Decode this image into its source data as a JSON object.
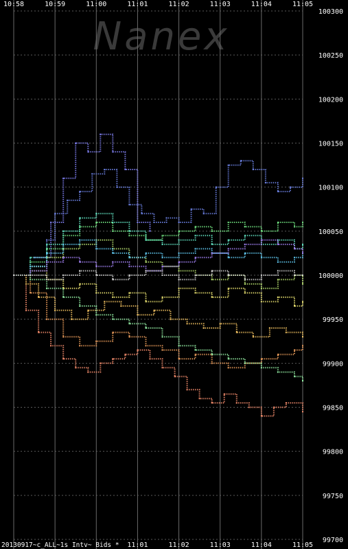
{
  "chart_data": {
    "type": "scatter",
    "watermark": "Nanex",
    "footer": "20130917~c_ALL~1s Intv~ Bids *",
    "x_ticks_top": [
      "10:58",
      "10:59",
      "11:00",
      "11:01",
      "11:02",
      "11:03",
      "11:04",
      "11:05"
    ],
    "x_ticks_bottom": [
      "11:01",
      "11:02",
      "11:03",
      "11:04",
      "11:05"
    ],
    "y_ticks": [
      100300,
      100250,
      100200,
      100150,
      100100,
      100050,
      100000,
      99950,
      99900,
      99850,
      99800,
      99750,
      99700
    ],
    "ylim": [
      99700,
      100300
    ],
    "xlim_minutes": [
      0,
      7
    ],
    "grid": true,
    "series": [
      {
        "color": "#6a7fe0",
        "values": [
          [
            0.0,
            100000
          ],
          [
            0.4,
            100010
          ],
          [
            0.8,
            100040
          ],
          [
            1.0,
            100070
          ],
          [
            1.3,
            100085
          ],
          [
            1.6,
            100095
          ],
          [
            1.9,
            100115
          ],
          [
            2.2,
            100120
          ],
          [
            2.5,
            100100
          ],
          [
            2.8,
            100080
          ],
          [
            3.1,
            100070
          ],
          [
            3.4,
            100060
          ],
          [
            3.7,
            100065
          ],
          [
            4.0,
            100060
          ],
          [
            4.3,
            100075
          ],
          [
            4.6,
            100070
          ],
          [
            4.9,
            100100
          ],
          [
            5.2,
            100125
          ],
          [
            5.5,
            100130
          ],
          [
            5.8,
            100120
          ],
          [
            6.1,
            100105
          ],
          [
            6.4,
            100095
          ],
          [
            6.7,
            100100
          ],
          [
            7.0,
            100110
          ]
        ]
      },
      {
        "color": "#7e7ef0",
        "values": [
          [
            0.5,
            100020
          ],
          [
            0.9,
            100060
          ],
          [
            1.2,
            100110
          ],
          [
            1.5,
            100150
          ],
          [
            1.8,
            100140
          ],
          [
            2.1,
            100160
          ],
          [
            2.4,
            100140
          ],
          [
            2.7,
            100120
          ],
          [
            3.0,
            100060
          ],
          [
            3.3,
            100050
          ]
        ]
      },
      {
        "color": "#f08a6a",
        "values": [
          [
            0.0,
            100000
          ],
          [
            0.3,
            99960
          ],
          [
            0.6,
            99935
          ],
          [
            0.9,
            99920
          ],
          [
            1.2,
            99905
          ],
          [
            1.5,
            99895
          ],
          [
            1.8,
            99890
          ],
          [
            2.1,
            99900
          ],
          [
            2.4,
            99905
          ],
          [
            2.7,
            99910
          ],
          [
            3.0,
            99915
          ],
          [
            3.3,
            99905
          ],
          [
            3.6,
            99895
          ],
          [
            3.9,
            99885
          ],
          [
            4.2,
            99870
          ],
          [
            4.5,
            99860
          ],
          [
            4.8,
            99855
          ],
          [
            5.1,
            99865
          ],
          [
            5.4,
            99855
          ],
          [
            5.7,
            99850
          ],
          [
            6.0,
            99840
          ],
          [
            6.3,
            99850
          ],
          [
            6.6,
            99855
          ],
          [
            7.0,
            99845
          ]
        ]
      },
      {
        "color": "#e89a5a",
        "values": [
          [
            0.0,
            100000
          ],
          [
            0.4,
            99980
          ],
          [
            0.8,
            99950
          ],
          [
            1.2,
            99930
          ],
          [
            1.6,
            99920
          ],
          [
            2.0,
            99925
          ],
          [
            2.4,
            99935
          ],
          [
            2.8,
            99930
          ],
          [
            3.2,
            99920
          ],
          [
            3.6,
            99915
          ],
          [
            4.0,
            99905
          ],
          [
            4.4,
            99910
          ],
          [
            4.8,
            99900
          ],
          [
            5.2,
            99895
          ],
          [
            5.6,
            99900
          ],
          [
            6.0,
            99905
          ],
          [
            6.4,
            99910
          ],
          [
            6.8,
            99915
          ],
          [
            7.0,
            99920
          ]
        ]
      },
      {
        "color": "#f0c060",
        "values": [
          [
            0.0,
            100000
          ],
          [
            0.3,
            99990
          ],
          [
            0.6,
            99975
          ],
          [
            1.0,
            99960
          ],
          [
            1.4,
            99950
          ],
          [
            1.8,
            99960
          ],
          [
            2.2,
            99970
          ],
          [
            2.6,
            99965
          ],
          [
            3.0,
            99955
          ],
          [
            3.4,
            99960
          ],
          [
            3.8,
            99950
          ],
          [
            4.2,
            99945
          ],
          [
            4.6,
            99940
          ],
          [
            5.0,
            99945
          ],
          [
            5.4,
            99935
          ],
          [
            5.8,
            99930
          ],
          [
            6.2,
            99940
          ],
          [
            6.6,
            99935
          ],
          [
            7.0,
            99930
          ]
        ]
      },
      {
        "color": "#e8e070",
        "values": [
          [
            0.0,
            100000
          ],
          [
            0.4,
            100005
          ],
          [
            0.8,
            99995
          ],
          [
            1.2,
            99985
          ],
          [
            1.6,
            99990
          ],
          [
            2.0,
            99980
          ],
          [
            2.4,
            99975
          ],
          [
            2.8,
            99980
          ],
          [
            3.2,
            99970
          ],
          [
            3.6,
            99975
          ],
          [
            4.0,
            99985
          ],
          [
            4.4,
            99980
          ],
          [
            4.8,
            99975
          ],
          [
            5.2,
            99985
          ],
          [
            5.6,
            99980
          ],
          [
            6.0,
            99970
          ],
          [
            6.4,
            99975
          ],
          [
            6.8,
            99965
          ],
          [
            7.0,
            99970
          ]
        ]
      },
      {
        "color": "#b8e070",
        "values": [
          [
            0.0,
            100000
          ],
          [
            0.4,
            100010
          ],
          [
            0.8,
            100020
          ],
          [
            1.2,
            100030
          ],
          [
            1.6,
            100035
          ],
          [
            2.0,
            100040
          ],
          [
            2.4,
            100030
          ],
          [
            2.8,
            100020
          ],
          [
            3.2,
            100015
          ],
          [
            3.6,
            100010
          ],
          [
            4.0,
            100005
          ],
          [
            4.4,
            100000
          ],
          [
            4.8,
            99995
          ],
          [
            5.2,
            100000
          ],
          [
            5.6,
            99990
          ],
          [
            6.0,
            99985
          ],
          [
            6.4,
            99995
          ],
          [
            6.8,
            100000
          ],
          [
            7.0,
            99990
          ]
        ]
      },
      {
        "color": "#70e080",
        "values": [
          [
            0.0,
            100000
          ],
          [
            0.4,
            100015
          ],
          [
            0.8,
            100030
          ],
          [
            1.2,
            100045
          ],
          [
            1.6,
            100055
          ],
          [
            2.0,
            100060
          ],
          [
            2.4,
            100050
          ],
          [
            2.8,
            100045
          ],
          [
            3.2,
            100040
          ],
          [
            3.6,
            100045
          ],
          [
            4.0,
            100050
          ],
          [
            4.4,
            100055
          ],
          [
            4.8,
            100050
          ],
          [
            5.2,
            100060
          ],
          [
            5.6,
            100055
          ],
          [
            6.0,
            100050
          ],
          [
            6.4,
            100060
          ],
          [
            6.8,
            100055
          ],
          [
            7.0,
            100060
          ]
        ]
      },
      {
        "color": "#60e0c0",
        "values": [
          [
            0.0,
            100000
          ],
          [
            0.4,
            100020
          ],
          [
            0.8,
            100035
          ],
          [
            1.2,
            100050
          ],
          [
            1.6,
            100065
          ],
          [
            2.0,
            100070
          ],
          [
            2.4,
            100060
          ],
          [
            2.8,
            100050
          ],
          [
            3.2,
            100040
          ],
          [
            3.6,
            100035
          ],
          [
            4.0,
            100040
          ],
          [
            4.4,
            100045
          ],
          [
            4.8,
            100035
          ],
          [
            5.2,
            100040
          ],
          [
            5.6,
            100045
          ],
          [
            6.0,
            100035
          ],
          [
            6.4,
            100040
          ],
          [
            6.8,
            100030
          ],
          [
            7.0,
            100035
          ]
        ]
      },
      {
        "color": "#60c8f0",
        "values": [
          [
            0.0,
            100000
          ],
          [
            0.4,
            100010
          ],
          [
            0.8,
            100025
          ],
          [
            1.2,
            100035
          ],
          [
            1.6,
            100040
          ],
          [
            2.0,
            100030
          ],
          [
            2.4,
            100025
          ],
          [
            2.8,
            100020
          ],
          [
            3.2,
            100025
          ],
          [
            3.6,
            100020
          ],
          [
            4.0,
            100025
          ],
          [
            4.4,
            100030
          ],
          [
            4.8,
            100025
          ],
          [
            5.2,
            100020
          ],
          [
            5.6,
            100025
          ],
          [
            6.0,
            100020
          ],
          [
            6.4,
            100015
          ],
          [
            6.8,
            100020
          ],
          [
            7.0,
            100025
          ]
        ]
      },
      {
        "color": "#a080f0",
        "values": [
          [
            0.0,
            100000
          ],
          [
            0.4,
            100005
          ],
          [
            0.8,
            100015
          ],
          [
            1.2,
            100020
          ],
          [
            1.6,
            100015
          ],
          [
            2.0,
            100010
          ],
          [
            2.4,
            100015
          ],
          [
            2.8,
            100010
          ],
          [
            3.2,
            100005
          ],
          [
            3.6,
            100010
          ],
          [
            4.0,
            100015
          ],
          [
            4.4,
            100020
          ],
          [
            4.8,
            100025
          ],
          [
            5.2,
            100030
          ],
          [
            5.6,
            100035
          ],
          [
            6.0,
            100040
          ],
          [
            6.4,
            100035
          ],
          [
            6.8,
            100030
          ],
          [
            7.0,
            100025
          ]
        ]
      },
      {
        "color": "#90e8a0",
        "values": [
          [
            0.0,
            100000
          ],
          [
            0.4,
            99995
          ],
          [
            0.8,
            99985
          ],
          [
            1.2,
            99975
          ],
          [
            1.6,
            99965
          ],
          [
            2.0,
            99955
          ],
          [
            2.4,
            99950
          ],
          [
            2.8,
            99945
          ],
          [
            3.2,
            99940
          ],
          [
            3.6,
            99930
          ],
          [
            4.0,
            99920
          ],
          [
            4.4,
            99915
          ],
          [
            4.8,
            99910
          ],
          [
            5.2,
            99905
          ],
          [
            5.6,
            99900
          ],
          [
            6.0,
            99895
          ],
          [
            6.4,
            99890
          ],
          [
            6.8,
            99885
          ],
          [
            7.0,
            99880
          ]
        ]
      },
      {
        "color": "#d0d0d0",
        "values": [
          [
            0.0,
            100000
          ],
          [
            0.4,
            100000
          ],
          [
            0.8,
            99995
          ],
          [
            1.2,
            100000
          ],
          [
            1.6,
            100005
          ],
          [
            2.0,
            100000
          ],
          [
            2.4,
            99995
          ],
          [
            2.8,
            100000
          ],
          [
            3.2,
            100005
          ],
          [
            3.6,
            100000
          ],
          [
            4.0,
            99995
          ],
          [
            4.4,
            100000
          ],
          [
            4.8,
            100005
          ],
          [
            5.2,
            100000
          ],
          [
            5.6,
            99995
          ],
          [
            6.0,
            100000
          ],
          [
            6.4,
            100005
          ],
          [
            6.8,
            100000
          ],
          [
            7.0,
            100000
          ]
        ]
      }
    ]
  }
}
